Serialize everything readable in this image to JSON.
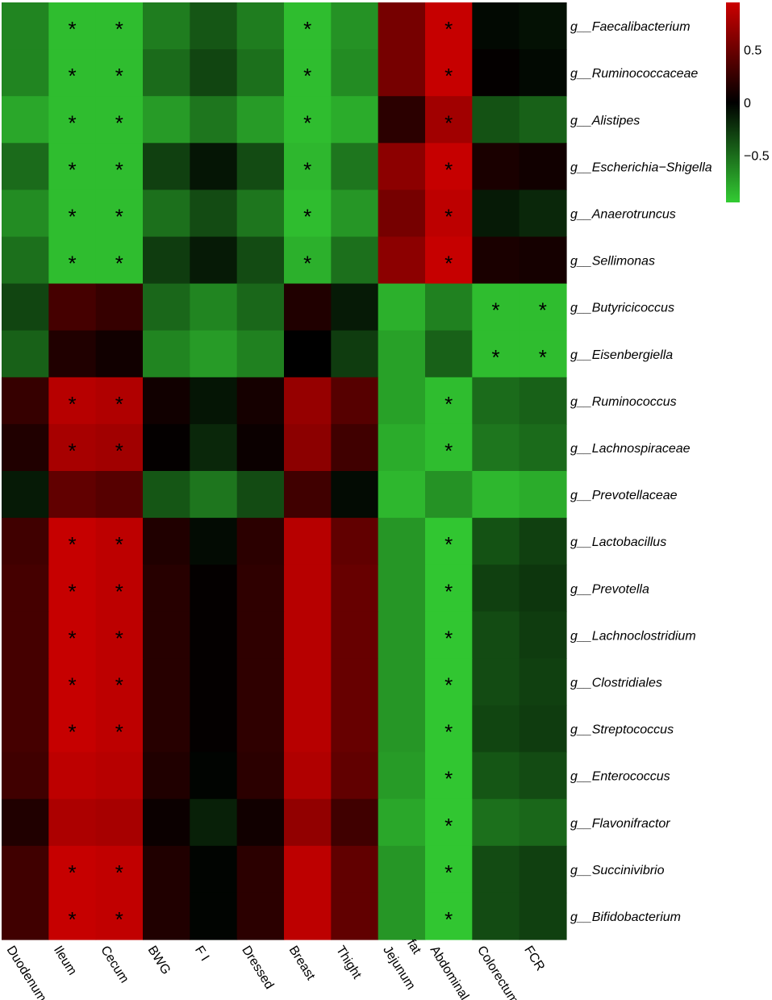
{
  "chart_data": {
    "type": "heatmap",
    "columns": [
      "Duodenum",
      "Ileum",
      "Cecum",
      "BWG",
      "F I",
      "Dressed",
      "Breast",
      "Thight",
      "Jejunum",
      "Abdominal fat",
      "Colorectum",
      "FCR"
    ],
    "rows": [
      "g__Faecalibacterium",
      "g__Ruminococcaceae",
      "g__Alistipes",
      "g__Escherichia−Shigella",
      "g__Anaerotruncus",
      "g__Sellimonas",
      "g__Butyricicoccus",
      "g__Eisenbergiella",
      "g__Ruminococcus",
      "g__Lachnospiraceae",
      "g__Prevotellaceae",
      "g__Lactobacillus",
      "g__Prevotella",
      "g__Lachnoclostridium",
      "g__Clostridiales",
      "g__Streptococcus",
      "g__Enterococcus",
      "g__Flavonifractor",
      "g__Succinivibrio",
      "g__Bifidobacterium"
    ],
    "values": [
      [
        -0.62,
        -0.88,
        -0.88,
        -0.58,
        -0.4,
        -0.58,
        -0.88,
        -0.68,
        0.55,
        0.92,
        -0.04,
        -0.08
      ],
      [
        -0.62,
        -0.88,
        -0.88,
        -0.5,
        -0.32,
        -0.52,
        -0.88,
        -0.65,
        0.55,
        0.92,
        0.02,
        -0.04
      ],
      [
        -0.78,
        -0.88,
        -0.88,
        -0.72,
        -0.55,
        -0.72,
        -0.88,
        -0.8,
        0.2,
        0.75,
        -0.38,
        -0.45
      ],
      [
        -0.5,
        -0.88,
        -0.88,
        -0.3,
        -0.1,
        -0.35,
        -0.85,
        -0.55,
        0.65,
        0.92,
        0.12,
        0.08
      ],
      [
        -0.65,
        -0.88,
        -0.88,
        -0.52,
        -0.35,
        -0.55,
        -0.88,
        -0.7,
        0.55,
        0.88,
        -0.12,
        -0.18
      ],
      [
        -0.52,
        -0.88,
        -0.88,
        -0.28,
        -0.12,
        -0.35,
        -0.82,
        -0.52,
        0.65,
        0.92,
        0.12,
        0.1
      ],
      [
        -0.32,
        0.32,
        0.25,
        -0.48,
        -0.62,
        -0.48,
        0.15,
        -0.12,
        -0.82,
        -0.6,
        -0.88,
        -0.88
      ],
      [
        -0.45,
        0.15,
        0.08,
        -0.62,
        -0.72,
        -0.6,
        0.0,
        -0.28,
        -0.75,
        -0.45,
        -0.88,
        -0.88
      ],
      [
        0.25,
        0.85,
        0.82,
        0.08,
        -0.1,
        0.1,
        0.7,
        0.4,
        -0.75,
        -0.88,
        -0.5,
        -0.45
      ],
      [
        0.15,
        0.78,
        0.75,
        0.02,
        -0.18,
        0.05,
        0.65,
        0.3,
        -0.8,
        -0.88,
        -0.55,
        -0.5
      ],
      [
        -0.12,
        0.45,
        0.4,
        -0.4,
        -0.55,
        -0.35,
        0.3,
        -0.05,
        -0.85,
        -0.68,
        -0.85,
        -0.8
      ],
      [
        0.3,
        0.92,
        0.88,
        0.15,
        -0.05,
        0.2,
        0.85,
        0.45,
        -0.7,
        -0.92,
        -0.38,
        -0.3
      ],
      [
        0.32,
        0.92,
        0.88,
        0.18,
        0.02,
        0.22,
        0.85,
        0.48,
        -0.7,
        -0.92,
        -0.3,
        -0.25
      ],
      [
        0.32,
        0.92,
        0.88,
        0.18,
        0.02,
        0.22,
        0.85,
        0.48,
        -0.7,
        -0.92,
        -0.35,
        -0.28
      ],
      [
        0.32,
        0.92,
        0.88,
        0.18,
        0.02,
        0.22,
        0.85,
        0.48,
        -0.7,
        -0.92,
        -0.35,
        -0.3
      ],
      [
        0.32,
        0.92,
        0.88,
        0.18,
        0.02,
        0.22,
        0.85,
        0.48,
        -0.7,
        -0.92,
        -0.32,
        -0.28
      ],
      [
        0.3,
        0.88,
        0.85,
        0.15,
        -0.02,
        0.2,
        0.82,
        0.45,
        -0.72,
        -0.92,
        -0.4,
        -0.35
      ],
      [
        0.15,
        0.8,
        0.78,
        0.05,
        -0.15,
        0.08,
        0.68,
        0.3,
        -0.78,
        -0.92,
        -0.52,
        -0.48
      ],
      [
        0.3,
        0.92,
        0.9,
        0.15,
        -0.02,
        0.2,
        0.88,
        0.45,
        -0.7,
        -0.92,
        -0.35,
        -0.3
      ],
      [
        0.3,
        0.92,
        0.9,
        0.15,
        -0.02,
        0.2,
        0.88,
        0.45,
        -0.7,
        -0.92,
        -0.35,
        -0.3
      ]
    ],
    "significance": [
      [
        1,
        2,
        6,
        9
      ],
      [
        1,
        2,
        6,
        9
      ],
      [
        1,
        2,
        6,
        9
      ],
      [
        1,
        2,
        6,
        9
      ],
      [
        1,
        2,
        6,
        9
      ],
      [
        1,
        2,
        6,
        9
      ],
      [
        10,
        11
      ],
      [
        10,
        11
      ],
      [
        1,
        2,
        9
      ],
      [
        1,
        2,
        9
      ],
      [],
      [
        1,
        2,
        9
      ],
      [
        1,
        2,
        9
      ],
      [
        1,
        2,
        9
      ],
      [
        1,
        2,
        9
      ],
      [
        1,
        2,
        9
      ],
      [
        9
      ],
      [
        9
      ],
      [
        1,
        2,
        9
      ],
      [
        1,
        2,
        9
      ]
    ],
    "significance_marker": "*",
    "color_scale": {
      "min": -0.95,
      "max": 0.95,
      "low_color": "#33cc33",
      "mid_color": "#000000",
      "high_color": "#cc0000",
      "ticks": [
        0.5,
        0,
        -0.5
      ],
      "tick_labels": [
        "0.5",
        "0",
        "−0.5"
      ]
    },
    "legend_placement": "top-right",
    "grid": false
  }
}
